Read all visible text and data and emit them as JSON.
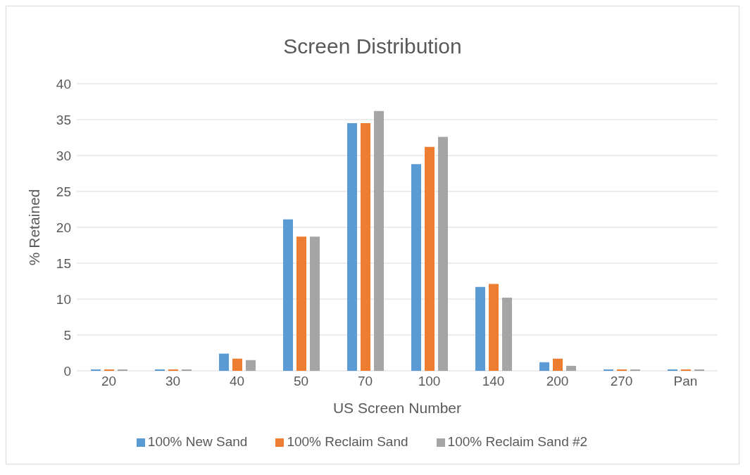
{
  "chart_data": {
    "type": "bar",
    "title": "Screen Distribution",
    "xlabel": "US Screen Number",
    "ylabel": "% Retained",
    "categories": [
      "20",
      "30",
      "40",
      "50",
      "70",
      "100",
      "140",
      "200",
      "270",
      "Pan"
    ],
    "series": [
      {
        "name": "100% New Sand",
        "color": "#5b9bd5",
        "values": [
          0.2,
          0.2,
          2.4,
          21.1,
          34.5,
          28.8,
          11.7,
          1.2,
          0.2,
          0.2
        ]
      },
      {
        "name": "100% Reclaim Sand",
        "color": "#ed7d31",
        "values": [
          0.2,
          0.2,
          1.7,
          18.7,
          34.5,
          31.2,
          12.1,
          1.7,
          0.2,
          0.2
        ]
      },
      {
        "name": "100% Reclaim Sand #2",
        "color": "#a5a5a5",
        "values": [
          0.2,
          0.2,
          1.5,
          18.7,
          36.2,
          32.6,
          10.2,
          0.7,
          0.2,
          0.2
        ]
      }
    ],
    "ylim": [
      0,
      40
    ],
    "yticks": [
      0,
      5,
      10,
      15,
      20,
      25,
      30,
      35,
      40
    ],
    "grid": "y",
    "legend": "bottom"
  }
}
